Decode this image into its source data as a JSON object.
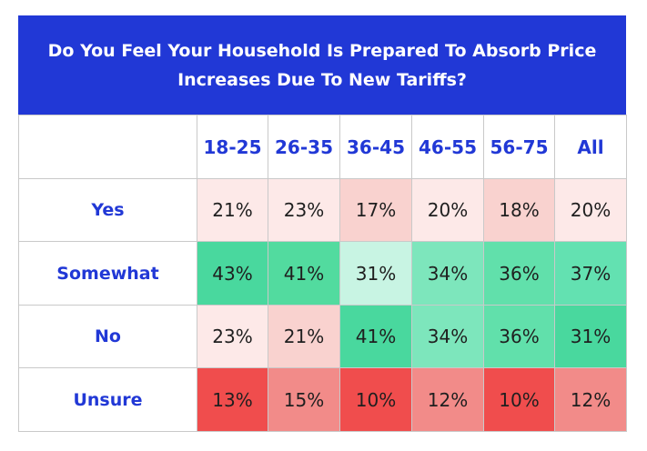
{
  "chart_data": {
    "type": "table",
    "title": "Do You Feel Your Household Is Prepared To Absorb Price Increases Due To New Tariffs?",
    "columns": [
      "18-25",
      "26-35",
      "36-45",
      "46-55",
      "56-75",
      "All"
    ],
    "rows": [
      {
        "label": "Yes",
        "values": [
          "21%",
          "23%",
          "17%",
          "20%",
          "18%",
          "20%"
        ],
        "colors": [
          "#fde9e8",
          "#fde9e8",
          "#f9d2cf",
          "#fde9e8",
          "#f9d2cf",
          "#fde9e8"
        ]
      },
      {
        "label": "Somewhat",
        "values": [
          "43%",
          "41%",
          "31%",
          "34%",
          "36%",
          "37%"
        ],
        "colors": [
          "#49d89e",
          "#52db9f",
          "#c8f4e3",
          "#7de6bc",
          "#61e0ab",
          "#63e1b1"
        ]
      },
      {
        "label": "No",
        "values": [
          "23%",
          "21%",
          "41%",
          "34%",
          "36%",
          "31%"
        ],
        "colors": [
          "#fde9e8",
          "#f9d2cf",
          "#49d89e",
          "#7de6bc",
          "#61e0ab",
          "#49d89e"
        ]
      },
      {
        "label": "Unsure",
        "values": [
          "13%",
          "15%",
          "10%",
          "12%",
          "10%",
          "12%"
        ],
        "colors": [
          "#f04d4d",
          "#f28b89",
          "#f04d4d",
          "#f28b89",
          "#f04d4d",
          "#f28b89"
        ]
      }
    ]
  },
  "colors": {
    "header_bg": "#2138d6",
    "header_text": "#ffffff",
    "label_text": "#2138d6",
    "border": "#c9c9c9"
  }
}
